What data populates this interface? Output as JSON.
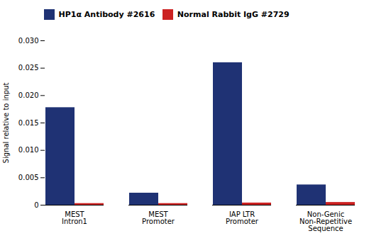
{
  "chart_data": {
    "type": "bar",
    "categories": [
      "MEST\nIntron1",
      "MEST\nPromoter",
      "IAP LTR\nPromoter",
      "Non-Genic\nNon-Repetitive\nSequence"
    ],
    "series": [
      {
        "name": "HP1α Antibody #2616",
        "color": "#1f3274",
        "values": [
          0.0178,
          0.0022,
          0.026,
          0.0037
        ]
      },
      {
        "name": "Normal Rabbit IgG #2729",
        "color": "#cc2222",
        "values": [
          0.0003,
          0.0003,
          0.0004,
          0.0005
        ]
      }
    ],
    "ylabel": "Signal relative to input",
    "ylim": [
      0,
      0.03
    ],
    "yticks": [
      0,
      0.005,
      {
        "value": 0.01,
        "label": "0.010"
      },
      0.015,
      {
        "value": 0.02,
        "label": "0.020"
      },
      0.025,
      {
        "value": 0.03,
        "label": "0.030"
      }
    ],
    "legend": "upper left",
    "grid": false
  }
}
